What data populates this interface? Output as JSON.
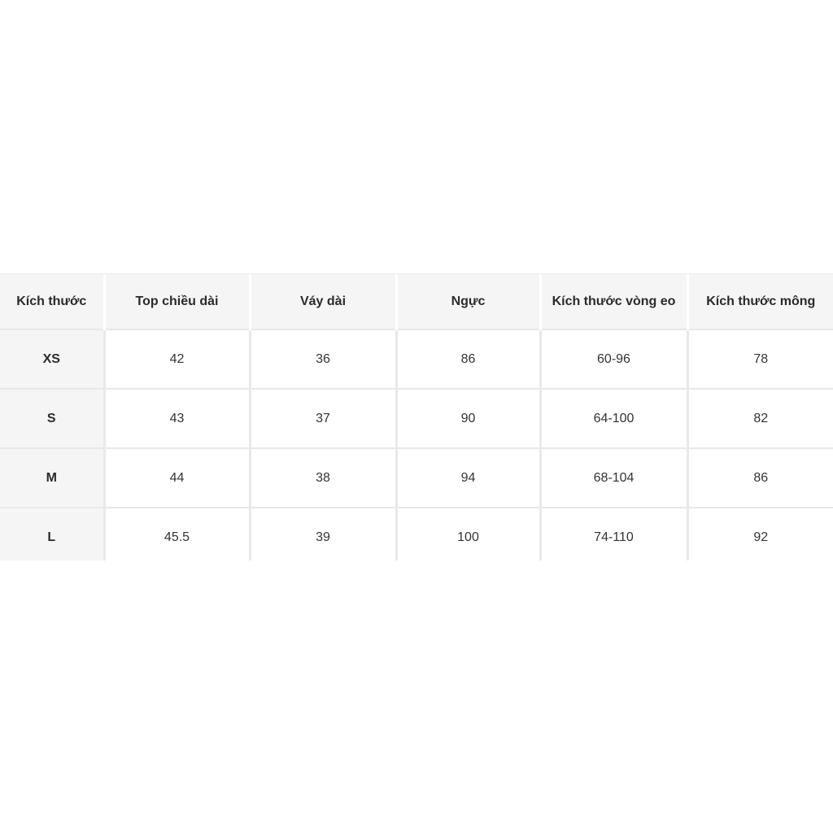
{
  "chart_data": {
    "type": "table",
    "title": "",
    "headers": [
      "Kích thước",
      "Top chiều dài",
      "Váy dài",
      "Ngực",
      "Kích thước vòng eo",
      "Kích thước mông"
    ],
    "rows": [
      [
        "XS",
        "42",
        "36",
        "86",
        "60-96",
        "78"
      ],
      [
        "S",
        "43",
        "37",
        "90",
        "64-100",
        "82"
      ],
      [
        "M",
        "44",
        "38",
        "94",
        "68-104",
        "86"
      ],
      [
        "L",
        "45.5",
        "39",
        "100",
        "74-110",
        "92"
      ]
    ],
    "notes": "Size chart table; last row partially cut off at bottom edge of screenshot"
  },
  "colors": {
    "page_background": "#ffffff",
    "header_background": "#f5f5f5",
    "first_column_background": "#f5f5f5",
    "body_cell_background": "#ffffff",
    "grid_line": "#e8e8e8",
    "header_text": "#2b2b2b",
    "body_text": "#333333"
  }
}
